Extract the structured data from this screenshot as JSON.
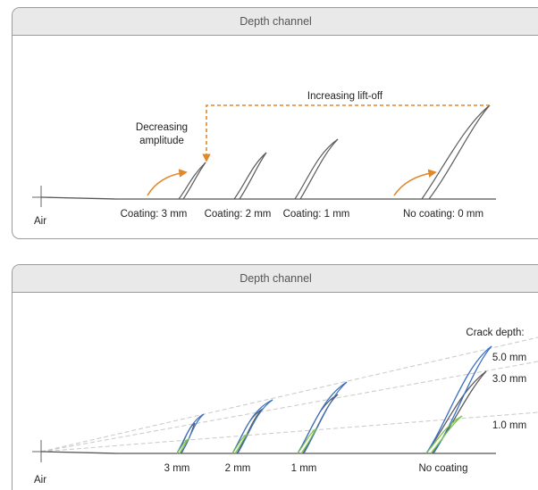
{
  "top_panel": {
    "title": "Depth channel",
    "air_label": "Air",
    "lift_off_label": "Increasing lift-off",
    "amplitude_label_line1": "Decreasing",
    "amplitude_label_line2": "amplitude",
    "traces": [
      {
        "label": "Coating: 3 mm"
      },
      {
        "label": "Coating: 2 mm"
      },
      {
        "label": "Coating: 1 mm"
      },
      {
        "label": "No coating: 0 mm"
      }
    ],
    "colors": {
      "trace": "#5a5a5a",
      "arrow": "#e0892a"
    }
  },
  "bottom_panel": {
    "title": "Depth channel",
    "air_label": "Air",
    "crack_depth_title": "Crack depth:",
    "crack_depths": [
      "5.0 mm",
      "3.0 mm",
      "1.0 mm"
    ],
    "traces": [
      {
        "label": "3 mm"
      },
      {
        "label": "2 mm"
      },
      {
        "label": "1 mm"
      },
      {
        "label": "No coating"
      }
    ],
    "colors": {
      "trace": "#5a5a5a",
      "crack_5mm": "#3a6fc4",
      "crack_1mm": "#7cc24a",
      "guide": "#c8c8c8"
    }
  }
}
